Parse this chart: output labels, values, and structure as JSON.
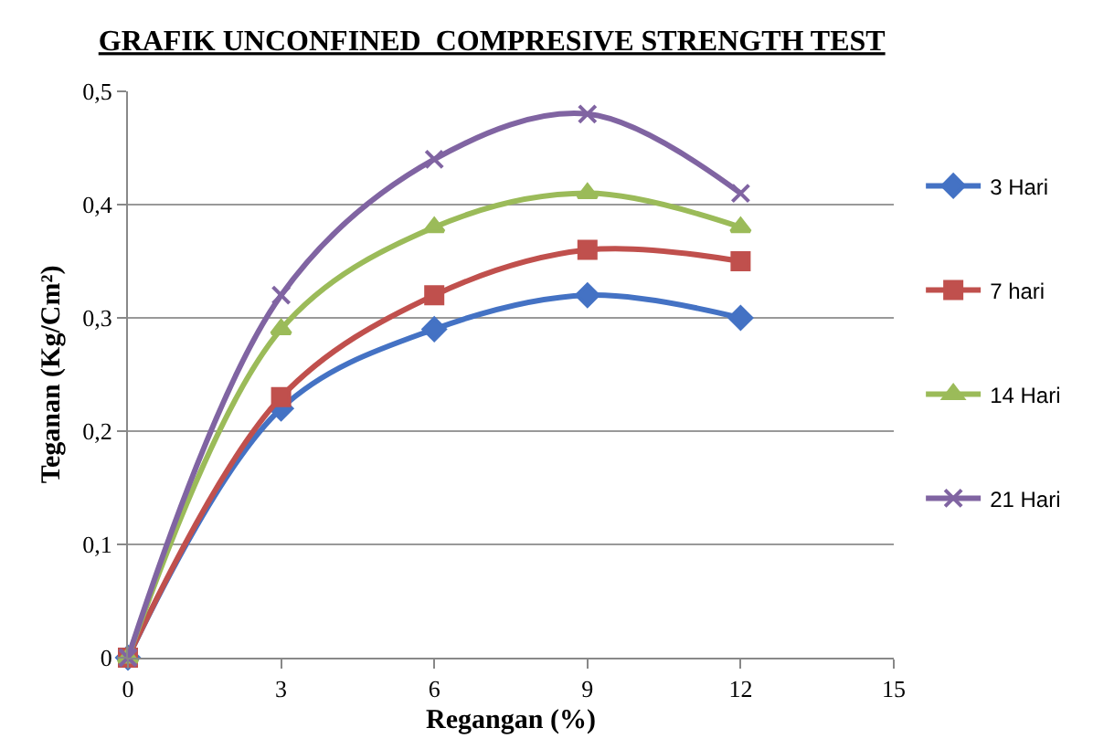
{
  "chart_data": {
    "type": "line",
    "title": "GRAFIK UNCONFINED  COMPRESIVE STRENGTH TEST",
    "xlabel": "Regangan (%)",
    "ylabel": "Teganan (Kg/Cm²)",
    "x": [
      0,
      3,
      6,
      9,
      12
    ],
    "xlim": [
      0,
      15
    ],
    "xticks": [
      0,
      3,
      6,
      9,
      12,
      15
    ],
    "ylim": [
      0,
      0.5
    ],
    "yticks": [
      {
        "value": 0,
        "label": "0"
      },
      {
        "value": 0.1,
        "label": "0,1"
      },
      {
        "value": 0.2,
        "label": "0,2"
      },
      {
        "value": 0.3,
        "label": "0,3"
      },
      {
        "value": 0.4,
        "label": "0,4"
      },
      {
        "value": 0.5,
        "label": "0,5"
      }
    ],
    "grid": "y",
    "legend": "right",
    "line_style": "solid",
    "series": [
      {
        "name": "3 Hari",
        "color": "#4472c4",
        "marker": "diamond",
        "values": [
          0,
          0.22,
          0.29,
          0.32,
          0.3
        ]
      },
      {
        "name": "7 hari",
        "color": "#c0504d",
        "marker": "square",
        "values": [
          0,
          0.23,
          0.32,
          0.36,
          0.35
        ]
      },
      {
        "name": "14 Hari",
        "color": "#9bbb59",
        "marker": "triangle",
        "values": [
          0,
          0.29,
          0.38,
          0.41,
          0.38
        ]
      },
      {
        "name": "21 Hari",
        "color": "#8064a2",
        "marker": "cross",
        "values": [
          0,
          0.32,
          0.44,
          0.48,
          0.41
        ]
      }
    ]
  }
}
